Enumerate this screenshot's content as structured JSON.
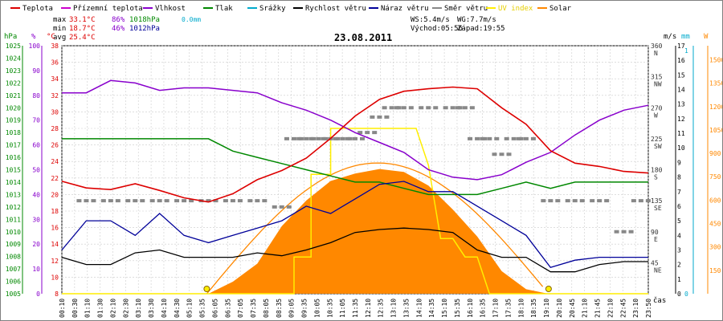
{
  "header": {
    "date": "23.08.2011",
    "stats": {
      "max_label": "max",
      "max_temp": "33.1°C",
      "max_hum": "86%",
      "max_press": "1018hPa",
      "max_rain": "0.0mm",
      "min_label": "min",
      "min_temp": "18.7°C",
      "min_hum": "46%",
      "min_press": "1012hPa",
      "avg_label": "avg",
      "avg_temp": "25.4°C"
    },
    "wind": {
      "ws": "WS:5.4m/s",
      "wg": "WG:7.7m/s",
      "sunrise": "Východ:05:56",
      "sunset": "Západ:19:55"
    }
  },
  "legend": [
    {
      "label": "Teplota",
      "color": "#dd0000"
    },
    {
      "label": "Přízemní teplota",
      "color": "#cc00cc"
    },
    {
      "label": "Vlhkost",
      "color": "#8800cc"
    },
    {
      "label": "Tlak",
      "color": "#008800"
    },
    {
      "label": "Srážky",
      "color": "#00aacc"
    },
    {
      "label": "Rychlost větru",
      "color": "#000000"
    },
    {
      "label": "Náraz větru",
      "color": "#000099"
    },
    {
      "label": "Směr větru",
      "color": "#888888"
    },
    {
      "label": "UV index",
      "color": "#ffee00"
    },
    {
      "label": "Solar",
      "color": "#ff8800"
    }
  ],
  "axes": {
    "press_unit": "hPa",
    "hum_unit": "%",
    "temp_unit": "°C",
    "wind_unit": "m/s",
    "rain_unit": "mm",
    "solar_unit": "W",
    "time_label": "čas",
    "press_ticks": [
      "1005",
      "1006",
      "1007",
      "1008",
      "1009",
      "1010",
      "1011",
      "1012",
      "1013",
      "1014",
      "1015",
      "1016",
      "1017",
      "1018",
      "1019",
      "1020",
      "1021",
      "1022",
      "1023",
      "1024",
      "1025"
    ],
    "hum_ticks": [
      "0",
      "10",
      "20",
      "30",
      "40",
      "50",
      "60",
      "70",
      "80",
      "90",
      "100"
    ],
    "temp_ticks": [
      "8",
      "10",
      "12",
      "14",
      "16",
      "18",
      "20",
      "22",
      "24",
      "26",
      "28",
      "30",
      "32",
      "34",
      "36",
      "38"
    ],
    "dir_ticks": [
      "360",
      "315",
      "270",
      "225",
      "180",
      "135",
      "90",
      "45"
    ],
    "dir_letters": [
      "N",
      "NW",
      "W",
      "SW",
      "S",
      "SE",
      "E",
      "NE"
    ],
    "wind_ticks": [
      "0",
      "1",
      "2",
      "3",
      "4",
      "5",
      "6",
      "7",
      "8",
      "9",
      "10",
      "11",
      "12",
      "13",
      "14",
      "15",
      "16",
      "17"
    ],
    "rain_ticks": [
      "0",
      "1"
    ],
    "solar_ticks": [
      "150",
      "300",
      "450",
      "600",
      "750",
      "900",
      "1050",
      "1200",
      "1350",
      "1500"
    ],
    "time_ticks": [
      "00:10",
      "00:30",
      "01:10",
      "01:30",
      "02:10",
      "02:30",
      "03:10",
      "03:30",
      "04:10",
      "04:30",
      "05:10",
      "05:35",
      "06:05",
      "06:35",
      "07:05",
      "07:35",
      "08:05",
      "08:35",
      "09:05",
      "09:35",
      "10:05",
      "10:35",
      "11:05",
      "11:35",
      "12:10",
      "12:35",
      "13:10",
      "13:35",
      "14:10",
      "14:35",
      "15:10",
      "15:35",
      "16:10",
      "16:35",
      "17:10",
      "17:35",
      "18:10",
      "18:35",
      "19:10",
      "20:10",
      "20:45",
      "21:10",
      "21:45",
      "22:10",
      "22:45",
      "23:10",
      "23:50"
    ]
  },
  "colors": {
    "temp": "#dd0000",
    "hum": "#8800cc",
    "press": "#008800",
    "wind": "#000000",
    "gust": "#000099",
    "dir": "#888888",
    "uv": "#ffee00",
    "solar": "#ff8800",
    "sunpath": "#ff8800",
    "sunmark": "#ffee00"
  },
  "chart_data": {
    "type": "line",
    "title": "23.08.2011",
    "x_range_hours": [
      0,
      24
    ],
    "series": [
      {
        "name": "Teplota",
        "unit": "°C",
        "points": [
          [
            0,
            21.6
          ],
          [
            1,
            20.8
          ],
          [
            2,
            20.6
          ],
          [
            3,
            21.3
          ],
          [
            4,
            20.5
          ],
          [
            5,
            19.6
          ],
          [
            6,
            19.1
          ],
          [
            7,
            20.1
          ],
          [
            8,
            21.8
          ],
          [
            9,
            22.9
          ],
          [
            10,
            24.4
          ],
          [
            11,
            26.8
          ],
          [
            12,
            29.5
          ],
          [
            13,
            31.5
          ],
          [
            14,
            32.5
          ],
          [
            15,
            32.8
          ],
          [
            16,
            33.0
          ],
          [
            17,
            32.8
          ],
          [
            18,
            30.5
          ],
          [
            19,
            28.5
          ],
          [
            20,
            25.3
          ],
          [
            21,
            23.8
          ],
          [
            22,
            23.4
          ],
          [
            23,
            22.8
          ],
          [
            24,
            22.6
          ]
        ]
      },
      {
        "name": "Vlhkost",
        "unit": "%",
        "points": [
          [
            0,
            81
          ],
          [
            1,
            81
          ],
          [
            2,
            86
          ],
          [
            3,
            85
          ],
          [
            4,
            82
          ],
          [
            5,
            83
          ],
          [
            6,
            83
          ],
          [
            7,
            82
          ],
          [
            8,
            81
          ],
          [
            9,
            77
          ],
          [
            10,
            74
          ],
          [
            11,
            70
          ],
          [
            12,
            65
          ],
          [
            13,
            61
          ],
          [
            14,
            57
          ],
          [
            15,
            50
          ],
          [
            16,
            47
          ],
          [
            17,
            46
          ],
          [
            18,
            48
          ],
          [
            19,
            53
          ],
          [
            20,
            57
          ],
          [
            21,
            64
          ],
          [
            22,
            70
          ],
          [
            23,
            74
          ],
          [
            24,
            76
          ]
        ]
      },
      {
        "name": "Tlak",
        "unit": "hPa",
        "points": [
          [
            0,
            1017.5
          ],
          [
            6,
            1017.5
          ],
          [
            7,
            1016.5
          ],
          [
            8,
            1016
          ],
          [
            9,
            1015.5
          ],
          [
            10,
            1015
          ],
          [
            11,
            1014.5
          ],
          [
            12,
            1014
          ],
          [
            13,
            1014
          ],
          [
            14,
            1013.5
          ],
          [
            15,
            1013
          ],
          [
            16,
            1013
          ],
          [
            17,
            1013
          ],
          [
            18,
            1013.5
          ],
          [
            19,
            1014
          ],
          [
            20,
            1013.5
          ],
          [
            21,
            1014
          ],
          [
            24,
            1014
          ]
        ]
      },
      {
        "name": "Rychlost větru",
        "unit": "m/s",
        "points": [
          [
            0,
            2.5
          ],
          [
            1,
            2
          ],
          [
            2,
            2
          ],
          [
            3,
            2.8
          ],
          [
            4,
            3
          ],
          [
            5,
            2.5
          ],
          [
            6,
            2.5
          ],
          [
            7,
            2.5
          ],
          [
            8,
            2.8
          ],
          [
            9,
            2.6
          ],
          [
            10,
            3
          ],
          [
            11,
            3.5
          ],
          [
            12,
            4.2
          ],
          [
            13,
            4.4
          ],
          [
            14,
            4.5
          ],
          [
            15,
            4.4
          ],
          [
            16,
            4.2
          ],
          [
            17,
            3
          ],
          [
            18,
            2.5
          ],
          [
            19,
            2.5
          ],
          [
            20,
            1.5
          ],
          [
            21,
            1.5
          ],
          [
            22,
            2
          ],
          [
            23,
            2.2
          ],
          [
            24,
            2.2
          ]
        ]
      },
      {
        "name": "Náraz větru",
        "unit": "m/s",
        "points": [
          [
            0,
            3
          ],
          [
            1,
            5
          ],
          [
            2,
            5
          ],
          [
            3,
            4
          ],
          [
            4,
            5.5
          ],
          [
            5,
            4
          ],
          [
            6,
            3.5
          ],
          [
            7,
            4
          ],
          [
            8,
            4.5
          ],
          [
            9,
            5
          ],
          [
            10,
            6
          ],
          [
            11,
            5.5
          ],
          [
            12,
            6.5
          ],
          [
            13,
            7.5
          ],
          [
            14,
            7.7
          ],
          [
            15,
            7
          ],
          [
            16,
            7
          ],
          [
            17,
            6
          ],
          [
            18,
            5
          ],
          [
            19,
            4
          ],
          [
            20,
            1.8
          ],
          [
            21,
            2.3
          ],
          [
            22,
            2.5
          ],
          [
            23,
            2.5
          ],
          [
            24,
            2.5
          ]
        ]
      },
      {
        "name": "UV index",
        "unit": "",
        "points": [
          [
            0,
            0
          ],
          [
            9.5,
            0
          ],
          [
            9.5,
            2
          ],
          [
            10.2,
            2
          ],
          [
            10.2,
            6.5
          ],
          [
            11,
            6.5
          ],
          [
            11,
            9
          ],
          [
            13,
            9
          ],
          [
            13.5,
            9
          ],
          [
            14.5,
            9
          ],
          [
            15,
            7
          ],
          [
            15.5,
            3
          ],
          [
            16,
            3
          ],
          [
            16.5,
            2
          ],
          [
            17,
            2
          ],
          [
            17.5,
            0
          ],
          [
            24,
            0
          ]
        ]
      },
      {
        "name": "Solar",
        "unit": "W",
        "points": [
          [
            0,
            0
          ],
          [
            6,
            0
          ],
          [
            7,
            80
          ],
          [
            8,
            200
          ],
          [
            9,
            450
          ],
          [
            10,
            620
          ],
          [
            11,
            750
          ],
          [
            12,
            800
          ],
          [
            13,
            830
          ],
          [
            14,
            810
          ],
          [
            15,
            720
          ],
          [
            16,
            560
          ],
          [
            17,
            380
          ],
          [
            18,
            150
          ],
          [
            19,
            30
          ],
          [
            19.9,
            0
          ],
          [
            24,
            0
          ]
        ]
      }
    ]
  }
}
